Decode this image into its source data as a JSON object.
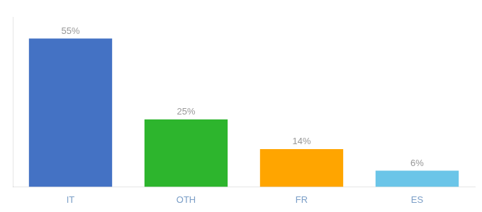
{
  "chart_data": {
    "type": "bar",
    "categories": [
      "IT",
      "OTH",
      "FR",
      "ES"
    ],
    "values": [
      55,
      25,
      14,
      6
    ],
    "value_labels": [
      "55%",
      "25%",
      "14%",
      "6%"
    ],
    "colors": [
      "#4472C4",
      "#2DB52D",
      "#FFA500",
      "#6BC5E8"
    ],
    "ylim": [
      0,
      63
    ],
    "data_labels": true,
    "tick_labels": "x",
    "grid": false
  }
}
